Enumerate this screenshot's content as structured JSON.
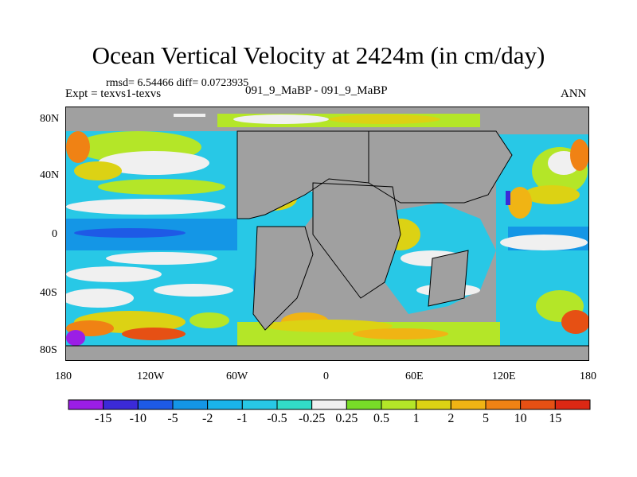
{
  "title": "Ocean Vertical Velocity at 2424m (in cm/day)",
  "stats": "rmsd= 6.54466 diff= 0.0723935",
  "expt": "Expt = texvs1-texvs",
  "comparison": "091_9_MaBP - 091_9_MaBP",
  "season": "ANN",
  "lat_labels": [
    "80N",
    "40N",
    "0",
    "40S",
    "80S"
  ],
  "lon_labels": [
    "180",
    "120W",
    "60W",
    "0",
    "60E",
    "120E",
    "180"
  ],
  "colorbar": {
    "labels": [
      "-15",
      "-10",
      "-5",
      "-2",
      "-1",
      "-0.5",
      "-0.25",
      "0.25",
      "0.5",
      "1",
      "2",
      "5",
      "10",
      "15"
    ],
    "colors": [
      "#9b1ee6",
      "#3b2ad8",
      "#1e5ae6",
      "#1496e6",
      "#1ab4ea",
      "#28c8e6",
      "#32dcc8",
      "#f0f0f0",
      "#78dc28",
      "#b4e628",
      "#dcd214",
      "#f0b414",
      "#f08214",
      "#e65014",
      "#dc2814"
    ]
  },
  "colors": {
    "land": "#a0a0a0",
    "coast": "#000000"
  }
}
